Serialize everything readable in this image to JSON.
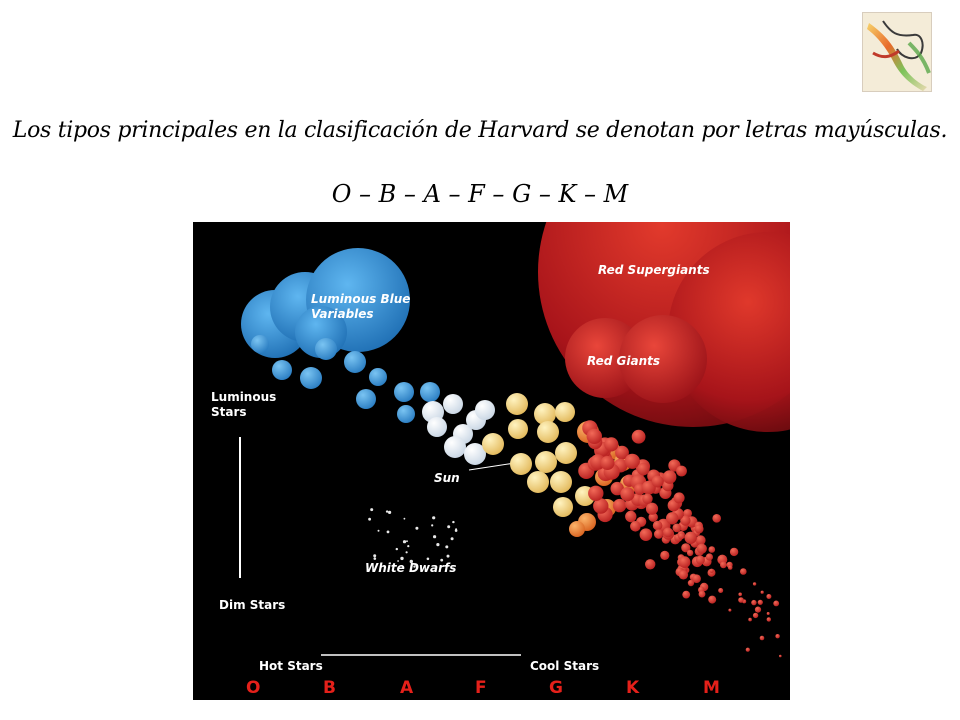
{
  "slide": {
    "title": "Los tipos principales en la clasificación de Harvard se denotan por letras mayúsculas.",
    "sequence": "O – B – A – F – G – K – M"
  },
  "diagram": {
    "labels": {
      "luminous_blue_variables": [
        "Luminous Blue",
        "Variables"
      ],
      "red_supergiants": "Red Supergiants",
      "red_giants": "Red Giants",
      "luminous_stars": [
        "Luminous",
        "Stars"
      ],
      "sun": "Sun",
      "white_dwarfs": "White Dwarfs",
      "dim_stars": "Dim Stars",
      "hot_stars": "Hot Stars",
      "cool_stars": "Cool Stars"
    },
    "spectral_classes": [
      "O",
      "B",
      "A",
      "F",
      "G",
      "K",
      "M"
    ],
    "colors": {
      "background": "#000000",
      "blue_stars": "#3a8fd6",
      "white_stars": "#f2f2f2",
      "yellow_stars": "#f3d77a",
      "orange_stars": "#f08a3c",
      "red_stars": "#d9302a",
      "class_letters": "#e5201a"
    }
  }
}
